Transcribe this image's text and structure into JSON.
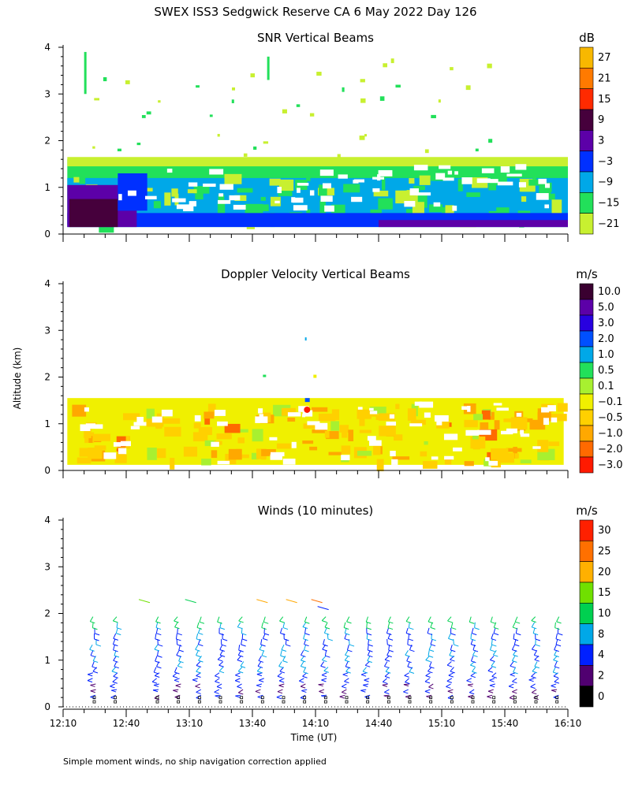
{
  "title": "SWEX ISS3 Sedgwick Reserve CA   6 May 2022 Day 126",
  "ylabel": "Altitude (km)",
  "xlabel": "Time (UT)",
  "footnote": "Simple moment winds, no ship navigation correction applied",
  "x_ticks": [
    "12:10",
    "12:40",
    "13:10",
    "13:40",
    "14:10",
    "14:40",
    "15:10",
    "15:40",
    "16:10"
  ],
  "y_ticks": [
    "0",
    "1",
    "2",
    "3",
    "4"
  ],
  "chart_data": [
    {
      "type": "heatmap",
      "title": "SNR Vertical Beams",
      "units": "dB",
      "xlim": [
        "12:10",
        "16:10"
      ],
      "ylim": [
        0,
        4
      ],
      "colorbar": {
        "labels": [
          "27",
          "21",
          "15",
          "9",
          "3",
          "−3",
          "−9",
          "−15",
          "−21"
        ],
        "colors": [
          "#f8b800",
          "#ff7a00",
          "#ff2a00",
          "#46003c",
          "#5c00a8",
          "#0030ff",
          "#00a8e8",
          "#22e05a",
          "#c8f030"
        ]
      },
      "regions": [
        {
          "x0": 0,
          "x1": 240,
          "y0": 0.15,
          "y1": 1.6,
          "level": "−15"
        },
        {
          "x0": 0,
          "x1": 240,
          "y0": 0.2,
          "y1": 1.2,
          "level": "−9"
        },
        {
          "x0": 0,
          "x1": 240,
          "y0": 0.15,
          "y1": 0.4,
          "level": "−3"
        },
        {
          "x0": 0,
          "x1": 35,
          "y0": 0.15,
          "y1": 1.0,
          "level": "3"
        },
        {
          "x0": 3,
          "x1": 30,
          "y0": 0.15,
          "y1": 0.7,
          "level": "9"
        }
      ]
    },
    {
      "type": "heatmap",
      "title": "Doppler Velocity Vertical Beams",
      "units": "m/s",
      "xlim": [
        "12:10",
        "16:10"
      ],
      "ylim": [
        0,
        4
      ],
      "colorbar": {
        "labels": [
          "10.0",
          "5.0",
          "3.0",
          "2.0",
          "1.0",
          "0.5",
          "0.1",
          "−0.1",
          "−0.5",
          "−1.0",
          "−2.0",
          "−3.0"
        ],
        "colors": [
          "#3a0030",
          "#5c00a8",
          "#2800e0",
          "#0050ff",
          "#00a8e8",
          "#22e05a",
          "#a8f030",
          "#f0f000",
          "#ffd000",
          "#ffa800",
          "#ff6a00",
          "#ff1a00"
        ]
      },
      "regions": [
        {
          "x0": 0,
          "x1": 240,
          "y0": 0.15,
          "y1": 1.6,
          "level": "−0.1"
        },
        {
          "x0": 0,
          "x1": 240,
          "y0": 0.5,
          "y1": 1.45,
          "level": "−0.5"
        },
        {
          "x0": 20,
          "x1": 60,
          "y0": 0.9,
          "y1": 1.6,
          "level": "−1.0"
        },
        {
          "x0": 175,
          "x1": 215,
          "y0": 1.0,
          "y1": 1.4,
          "level": "−1.0"
        }
      ]
    },
    {
      "type": "barbs",
      "title": "Winds (10 minutes)",
      "units": "m/s",
      "interval_minutes": 10,
      "xlim": [
        "12:10",
        "16:10"
      ],
      "ylim": [
        0,
        4
      ],
      "profile_times_min": [
        15,
        25,
        45,
        55,
        65,
        75,
        85,
        95,
        105,
        115,
        125,
        135,
        145,
        155,
        165,
        175,
        185,
        195,
        205,
        215,
        225,
        235
      ],
      "wind_profile": [
        {
          "alt": 0.3,
          "speed": 4,
          "dir": 250
        },
        {
          "alt": 0.5,
          "speed": 6,
          "dir": 240
        },
        {
          "alt": 0.8,
          "speed": 8,
          "dir": 215
        },
        {
          "alt": 1.1,
          "speed": 8,
          "dir": 200
        },
        {
          "alt": 1.4,
          "speed": 7,
          "dir": 190
        },
        {
          "alt": 1.7,
          "speed": 10,
          "dir": 200
        },
        {
          "alt": 1.9,
          "speed": 12,
          "dir": 210
        }
      ],
      "colorbar": {
        "labels": [
          "30",
          "25",
          "20",
          "15",
          "10",
          "8",
          "4",
          "2",
          "0"
        ],
        "colors": [
          "#ff2000",
          "#ff7000",
          "#ffb000",
          "#70e000",
          "#00d050",
          "#00a8e8",
          "#0020ff",
          "#500070",
          "#000000"
        ]
      }
    }
  ]
}
